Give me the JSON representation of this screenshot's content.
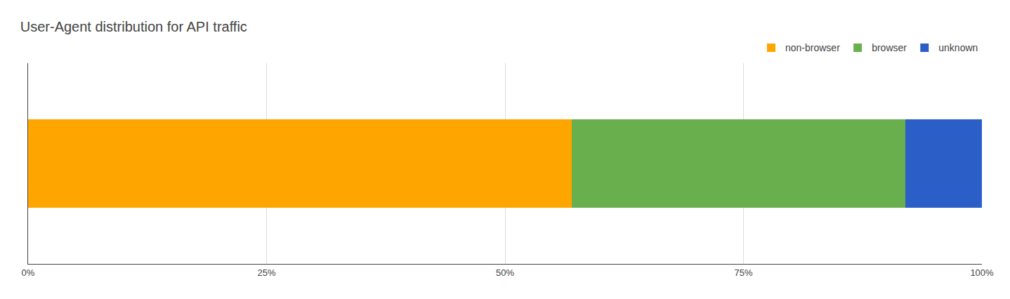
{
  "chart_data": {
    "type": "bar",
    "title": "User-Agent distribution for API traffic",
    "orientation": "horizontal",
    "stacked": true,
    "categories": [
      null
    ],
    "series": [
      {
        "name": "non-browser",
        "color": "#FFA500",
        "values": [
          57.0
        ]
      },
      {
        "name": "browser",
        "color": "#6AAF4E",
        "values": [
          35.0
        ]
      },
      {
        "name": "unknown",
        "color": "#2B5FC7",
        "values": [
          8.0
        ]
      }
    ],
    "xlim": [
      0,
      100
    ],
    "xticks": [
      {
        "value": 0,
        "label": "0%"
      },
      {
        "value": 25,
        "label": "25%"
      },
      {
        "value": 50,
        "label": "50%"
      },
      {
        "value": 75,
        "label": "75%"
      },
      {
        "value": 100,
        "label": "100%"
      }
    ],
    "grid": true,
    "legend": "upper right",
    "tick_labels": "x"
  }
}
